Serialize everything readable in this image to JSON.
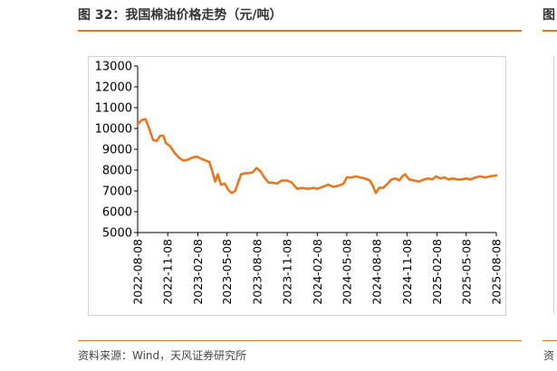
{
  "header": {
    "title": "图 32：我国棉油价格走势（元/吨）",
    "right_peek": "图"
  },
  "footer": {
    "source": "资料来源：Wind，天风证券研究所",
    "right_peek": "资"
  },
  "colors": {
    "accent": "#E87722",
    "series": "#E87722"
  },
  "chart_data": {
    "type": "line",
    "title": "我国棉油价格走势（元/吨）",
    "xlabel": "",
    "ylabel": "",
    "ylim": [
      5000,
      13000
    ],
    "yticks": [
      5000,
      6000,
      7000,
      8000,
      9000,
      10000,
      11000,
      12000,
      13000
    ],
    "xlim": [
      "2022-08-08",
      "2025-08-08"
    ],
    "xticks": [
      "2022-08-08",
      "2022-11-08",
      "2023-02-08",
      "2023-05-08",
      "2023-08-08",
      "2023-11-08",
      "2024-02-08",
      "2024-05-08",
      "2024-08-08",
      "2024-11-08",
      "2025-02-08",
      "2025-05-08",
      "2025-08-08"
    ],
    "grid": false,
    "legend": "none",
    "series": [
      {
        "name": "棉油价格",
        "points": [
          [
            "2022-08-08",
            10200
          ],
          [
            "2022-08-20",
            10400
          ],
          [
            "2022-09-01",
            10450
          ],
          [
            "2022-09-12",
            10000
          ],
          [
            "2022-09-24",
            9450
          ],
          [
            "2022-10-05",
            9400
          ],
          [
            "2022-10-16",
            9650
          ],
          [
            "2022-10-26",
            9650
          ],
          [
            "2022-11-02",
            9300
          ],
          [
            "2022-11-15",
            9150
          ],
          [
            "2022-11-28",
            8850
          ],
          [
            "2022-12-12",
            8600
          ],
          [
            "2022-12-26",
            8450
          ],
          [
            "2023-01-08",
            8500
          ],
          [
            "2023-01-22",
            8600
          ],
          [
            "2023-02-05",
            8650
          ],
          [
            "2023-02-18",
            8550
          ],
          [
            "2023-03-05",
            8450
          ],
          [
            "2023-03-15",
            8400
          ],
          [
            "2023-03-25",
            7900
          ],
          [
            "2023-04-02",
            7450
          ],
          [
            "2023-04-10",
            7800
          ],
          [
            "2023-04-20",
            7300
          ],
          [
            "2023-05-01",
            7350
          ],
          [
            "2023-05-12",
            7050
          ],
          [
            "2023-05-22",
            6900
          ],
          [
            "2023-06-02",
            7000
          ],
          [
            "2023-06-12",
            7450
          ],
          [
            "2023-06-20",
            7800
          ],
          [
            "2023-07-02",
            7850
          ],
          [
            "2023-07-15",
            7850
          ],
          [
            "2023-07-26",
            7900
          ],
          [
            "2023-08-06",
            8100
          ],
          [
            "2023-08-18",
            7950
          ],
          [
            "2023-08-30",
            7650
          ],
          [
            "2023-09-12",
            7400
          ],
          [
            "2023-09-24",
            7400
          ],
          [
            "2023-10-08",
            7350
          ],
          [
            "2023-10-22",
            7500
          ],
          [
            "2023-11-08",
            7500
          ],
          [
            "2023-11-22",
            7400
          ],
          [
            "2023-12-08",
            7100
          ],
          [
            "2023-12-22",
            7150
          ],
          [
            "2024-01-10",
            7100
          ],
          [
            "2024-01-28",
            7150
          ],
          [
            "2024-02-08",
            7100
          ],
          [
            "2024-02-25",
            7200
          ],
          [
            "2024-03-12",
            7300
          ],
          [
            "2024-03-28",
            7200
          ],
          [
            "2024-04-12",
            7250
          ],
          [
            "2024-04-28",
            7350
          ],
          [
            "2024-05-08",
            7650
          ],
          [
            "2024-05-22",
            7650
          ],
          [
            "2024-06-05",
            7700
          ],
          [
            "2024-06-18",
            7650
          ],
          [
            "2024-07-02",
            7600
          ],
          [
            "2024-07-18",
            7500
          ],
          [
            "2024-07-28",
            7200
          ],
          [
            "2024-08-05",
            6900
          ],
          [
            "2024-08-15",
            7150
          ],
          [
            "2024-08-28",
            7150
          ],
          [
            "2024-09-10",
            7350
          ],
          [
            "2024-09-22",
            7550
          ],
          [
            "2024-10-05",
            7600
          ],
          [
            "2024-10-15",
            7500
          ],
          [
            "2024-10-25",
            7700
          ],
          [
            "2024-11-02",
            7800
          ],
          [
            "2024-11-15",
            7550
          ],
          [
            "2024-11-30",
            7500
          ],
          [
            "2024-12-15",
            7450
          ],
          [
            "2024-12-30",
            7550
          ],
          [
            "2025-01-12",
            7600
          ],
          [
            "2025-01-24",
            7550
          ],
          [
            "2025-02-05",
            7700
          ],
          [
            "2025-02-18",
            7600
          ],
          [
            "2025-03-02",
            7650
          ],
          [
            "2025-03-15",
            7550
          ],
          [
            "2025-03-28",
            7600
          ],
          [
            "2025-04-10",
            7550
          ],
          [
            "2025-04-24",
            7550
          ],
          [
            "2025-05-08",
            7600
          ],
          [
            "2025-05-22",
            7550
          ],
          [
            "2025-06-05",
            7650
          ],
          [
            "2025-06-20",
            7700
          ],
          [
            "2025-07-05",
            7650
          ],
          [
            "2025-07-20",
            7700
          ],
          [
            "2025-08-08",
            7750
          ]
        ]
      }
    ]
  }
}
